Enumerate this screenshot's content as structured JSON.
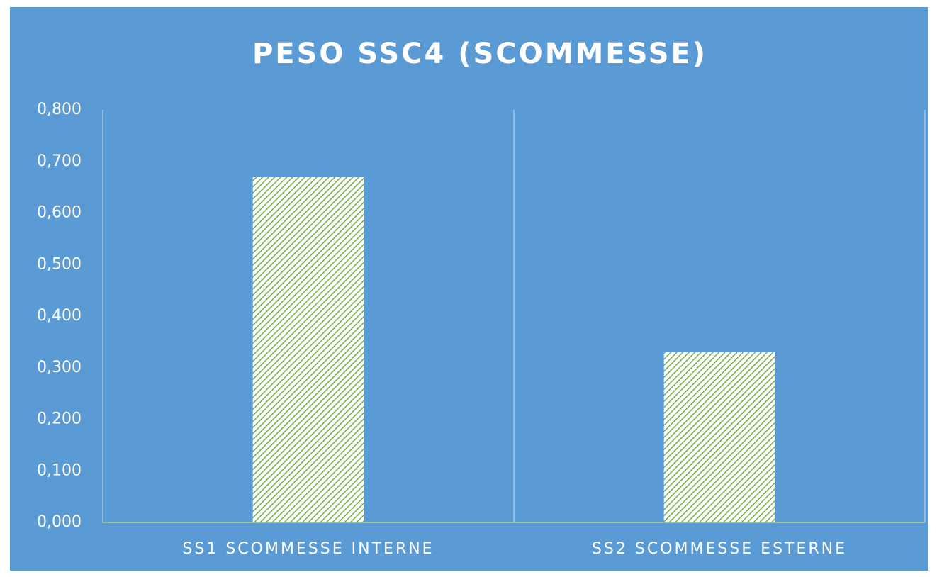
{
  "chart_data": {
    "type": "bar",
    "title": "PESO SSC4 (SCOMMESSE)",
    "categories": [
      "SS1 SCOMMESSE INTERNE",
      "SS2 SCOMMESSE ESTERNE"
    ],
    "values": [
      0.67,
      0.33
    ],
    "color": "#70ad47",
    "ylim": [
      0,
      0.8
    ],
    "yticks": [
      {
        "value": 0,
        "label": "0,000"
      },
      {
        "value": 0.1,
        "label": "0,100"
      },
      {
        "value": 0.2,
        "label": "0,200"
      },
      {
        "value": 0.3,
        "label": "0,300"
      },
      {
        "value": 0.4,
        "label": "0,400"
      },
      {
        "value": 0.5,
        "label": "0,500"
      },
      {
        "value": 0.6,
        "label": "0,600"
      },
      {
        "value": 0.7,
        "label": "0,700"
      },
      {
        "value": 0.8,
        "label": "0,800"
      }
    ],
    "grid": false
  }
}
